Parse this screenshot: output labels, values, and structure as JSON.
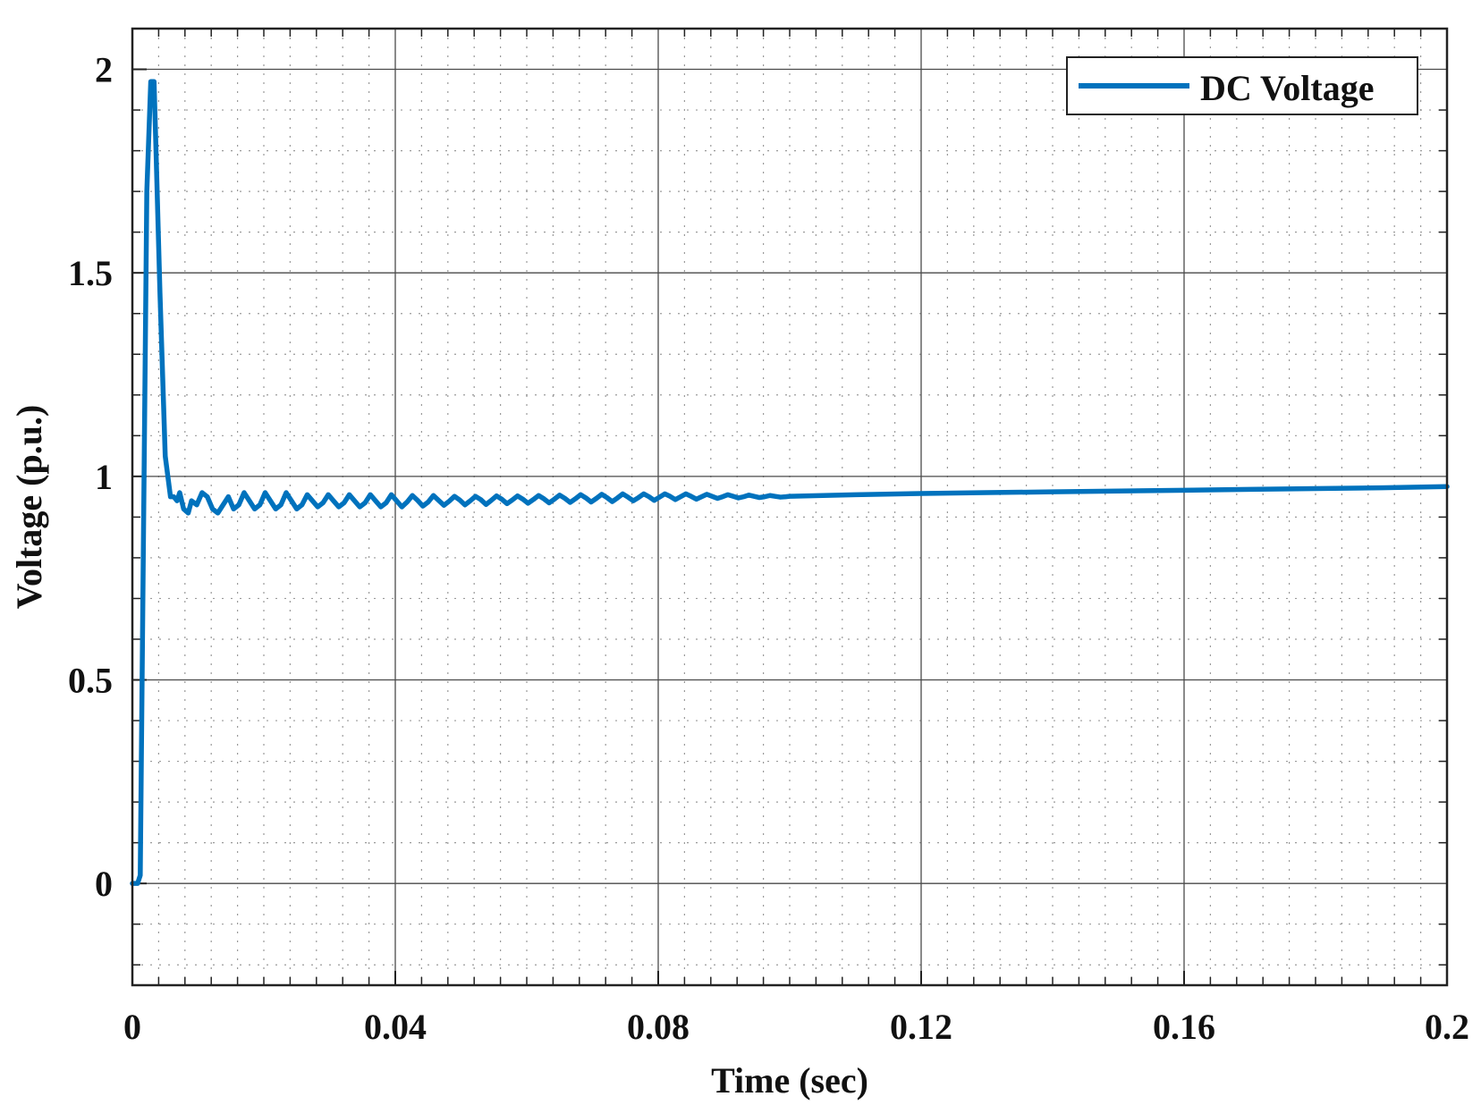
{
  "chart_data": {
    "type": "line",
    "xlabel": "Time (sec)",
    "ylabel": "Voltage (p.u.)",
    "xlim": [
      0,
      0.2
    ],
    "ylim": [
      -0.25,
      2.1
    ],
    "xticks": [
      0,
      0.04,
      0.08,
      0.12,
      0.16,
      0.2
    ],
    "xtick_labels": [
      "0",
      "0.04",
      "0.08",
      "0.12",
      "0.16",
      "0.2"
    ],
    "yticks": [
      0,
      0.5,
      1,
      1.5,
      2
    ],
    "ytick_labels": [
      "0",
      "0.5",
      "1",
      "1.5",
      "2"
    ],
    "x_minor_step": 0.004,
    "y_minor_step": 0.1,
    "grid": "major and minor",
    "legend_position": "top-right",
    "series": [
      {
        "name": "DC Voltage",
        "color": "#0072BD",
        "x": [
          0,
          0.0008,
          0.0012,
          0.0016,
          0.0022,
          0.0028,
          0.0033,
          0.0036,
          0.0042,
          0.005,
          0.0058,
          0.0063,
          0.0068,
          0.0072,
          0.0078,
          0.0085,
          0.009,
          0.0098,
          0.0106,
          0.0114,
          0.0122,
          0.013,
          0.0138,
          0.0146,
          0.0154,
          0.0162,
          0.017,
          0.0178,
          0.0186,
          0.0194,
          0.0202,
          0.021,
          0.0218,
          0.0226,
          0.0234,
          0.0242,
          0.025,
          0.0258,
          0.0266,
          0.0274,
          0.0282,
          0.029,
          0.0298,
          0.0306,
          0.0314,
          0.0322,
          0.033,
          0.0338,
          0.0346,
          0.0354,
          0.0362,
          0.037,
          0.0378,
          0.0386,
          0.0394,
          0.0402,
          0.041,
          0.0418,
          0.0426,
          0.0434,
          0.0442,
          0.045,
          0.0458,
          0.0466,
          0.0474,
          0.0482,
          0.049,
          0.0498,
          0.0506,
          0.0514,
          0.0522,
          0.053,
          0.0538,
          0.0546,
          0.0554,
          0.0562,
          0.057,
          0.0578,
          0.0586,
          0.0594,
          0.0602,
          0.061,
          0.0618,
          0.0626,
          0.0634,
          0.0642,
          0.065,
          0.0658,
          0.0666,
          0.0674,
          0.0682,
          0.069,
          0.0698,
          0.0706,
          0.0714,
          0.0722,
          0.073,
          0.0738,
          0.0746,
          0.0754,
          0.0762,
          0.077,
          0.0778,
          0.0786,
          0.0794,
          0.0802,
          0.081,
          0.0818,
          0.0826,
          0.0834,
          0.0842,
          0.085,
          0.0858,
          0.0866,
          0.0874,
          0.0882,
          0.089,
          0.0898,
          0.0906,
          0.0914,
          0.0922,
          0.093,
          0.0938,
          0.0946,
          0.0954,
          0.0962,
          0.097,
          0.0978,
          0.0986,
          0.0994,
          0.1,
          0.11,
          0.12,
          0.13,
          0.14,
          0.15,
          0.16,
          0.17,
          0.18,
          0.19,
          0.2
        ],
        "y": [
          0,
          0,
          0.02,
          0.7,
          1.7,
          1.97,
          1.97,
          1.8,
          1.45,
          1.05,
          0.95,
          0.95,
          0.94,
          0.96,
          0.92,
          0.91,
          0.94,
          0.93,
          0.96,
          0.95,
          0.92,
          0.91,
          0.93,
          0.95,
          0.92,
          0.93,
          0.96,
          0.94,
          0.92,
          0.93,
          0.96,
          0.94,
          0.92,
          0.93,
          0.96,
          0.94,
          0.92,
          0.93,
          0.955,
          0.94,
          0.925,
          0.935,
          0.955,
          0.94,
          0.925,
          0.935,
          0.955,
          0.94,
          0.925,
          0.935,
          0.955,
          0.94,
          0.925,
          0.935,
          0.955,
          0.94,
          0.925,
          0.937,
          0.953,
          0.941,
          0.927,
          0.937,
          0.953,
          0.941,
          0.929,
          0.939,
          0.951,
          0.942,
          0.93,
          0.94,
          0.951,
          0.943,
          0.931,
          0.941,
          0.952,
          0.944,
          0.933,
          0.942,
          0.952,
          0.944,
          0.934,
          0.943,
          0.953,
          0.945,
          0.935,
          0.944,
          0.954,
          0.946,
          0.936,
          0.945,
          0.955,
          0.947,
          0.937,
          0.946,
          0.956,
          0.948,
          0.938,
          0.947,
          0.957,
          0.949,
          0.94,
          0.948,
          0.957,
          0.95,
          0.941,
          0.949,
          0.957,
          0.951,
          0.943,
          0.95,
          0.957,
          0.951,
          0.944,
          0.95,
          0.956,
          0.951,
          0.946,
          0.95,
          0.955,
          0.951,
          0.947,
          0.95,
          0.954,
          0.951,
          0.948,
          0.95,
          0.953,
          0.951,
          0.949,
          0.95,
          0.951,
          0.955,
          0.958,
          0.96,
          0.962,
          0.964,
          0.966,
          0.968,
          0.97,
          0.972,
          0.975
        ]
      }
    ]
  }
}
